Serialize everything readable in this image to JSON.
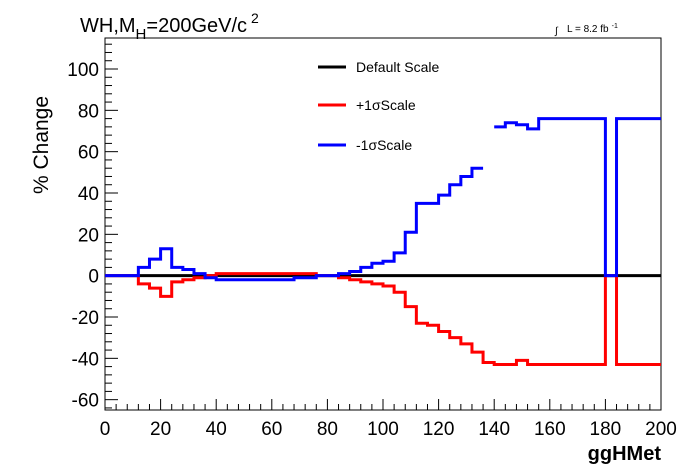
{
  "chart_data": {
    "type": "line",
    "title_main": "WH,M",
    "title_sub": "H",
    "title_rest": "=200GeV/c",
    "title_sup": "2",
    "lumi_integral": "∫",
    "lumi_text": "L = 8.2 fb",
    "lumi_sup": "-1",
    "xlabel": "ggHMet",
    "ylabel": "% Change",
    "xlim": [
      0,
      200
    ],
    "ylim": [
      -65,
      115
    ],
    "x_ticks": [
      0,
      20,
      40,
      60,
      80,
      100,
      120,
      140,
      160,
      180,
      200
    ],
    "y_ticks": [
      -60,
      -40,
      -20,
      0,
      20,
      40,
      60,
      80,
      100
    ],
    "grid": false,
    "legend_position": "top-center",
    "series": [
      {
        "name": "Default Scale",
        "color": "#000000",
        "bin_edges": [
          0,
          200
        ],
        "values": [
          0
        ]
      },
      {
        "name": "+1σScale",
        "color": "#ff0000",
        "bin_edges": [
          0,
          4,
          8,
          12,
          16,
          20,
          24,
          28,
          32,
          36,
          40,
          44,
          48,
          52,
          56,
          60,
          64,
          68,
          72,
          76,
          80,
          84,
          88,
          92,
          96,
          100,
          104,
          108,
          112,
          116,
          120,
          124,
          128,
          132,
          136,
          140,
          144,
          148,
          152,
          156,
          160,
          164,
          168,
          172,
          176,
          180,
          184,
          188,
          192,
          196,
          200
        ],
        "values": [
          0,
          0,
          0,
          -4,
          -6,
          -10,
          -3,
          -2,
          -1,
          0,
          1,
          1,
          1,
          1,
          1,
          1,
          1,
          1,
          1,
          0,
          0,
          -1,
          -2,
          -3,
          -4,
          -5,
          -8,
          -15,
          -23,
          -24,
          -27,
          -30,
          -33,
          -37,
          -42,
          -43,
          -43,
          -41,
          -43,
          -43,
          -43,
          -43,
          -43,
          -43,
          -43,
          0,
          -43,
          -43,
          -43,
          -43
        ]
      },
      {
        "name": "-1σScale",
        "color": "#0000ff",
        "bin_edges": [
          0,
          4,
          8,
          12,
          16,
          20,
          24,
          28,
          32,
          36,
          40,
          44,
          48,
          52,
          56,
          60,
          64,
          68,
          72,
          76,
          80,
          84,
          88,
          92,
          96,
          100,
          104,
          108,
          112,
          116,
          120,
          124,
          128,
          132,
          136,
          140,
          144,
          148,
          152,
          156,
          160,
          164,
          168,
          172,
          176,
          180,
          184,
          188,
          192,
          196,
          200
        ],
        "values": [
          0,
          0,
          0,
          4,
          8,
          13,
          4,
          3,
          1,
          -1,
          -2,
          -2,
          -2,
          -2,
          -2,
          -2,
          -2,
          -1,
          -1,
          0,
          0,
          1,
          2,
          4,
          6,
          7,
          11,
          21,
          35,
          35,
          39,
          44,
          48,
          52,
          null,
          72,
          74,
          73,
          71,
          76,
          76,
          76,
          76,
          76,
          76,
          0,
          76,
          76,
          76,
          76
        ]
      }
    ]
  }
}
